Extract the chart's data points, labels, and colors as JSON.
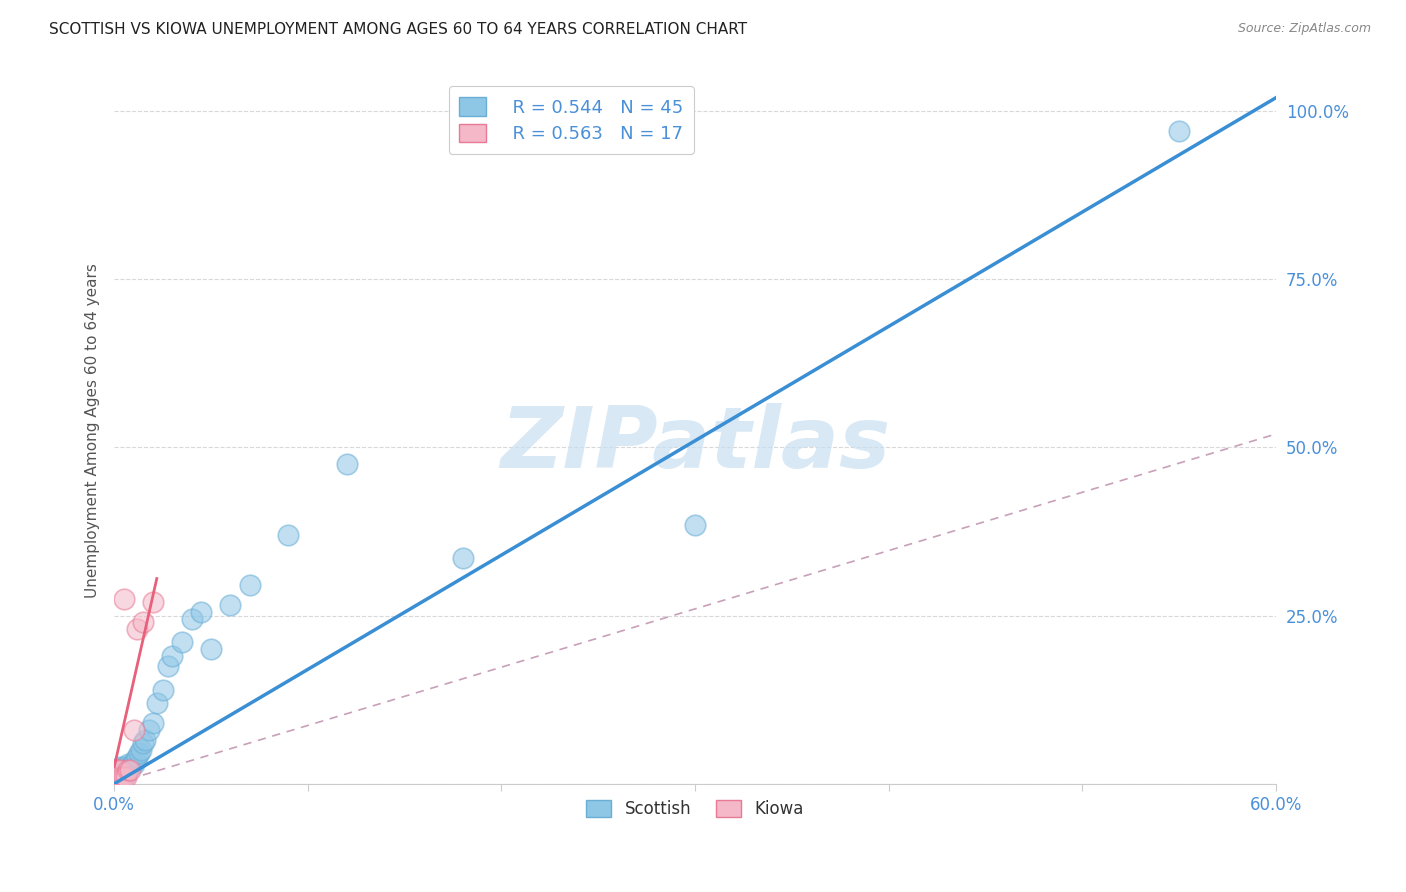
{
  "title": "SCOTTISH VS KIOWA UNEMPLOYMENT AMONG AGES 60 TO 64 YEARS CORRELATION CHART",
  "source": "Source: ZipAtlas.com",
  "ylabel": "Unemployment Among Ages 60 to 64 years",
  "xlim": [
    0.0,
    0.6
  ],
  "ylim": [
    0.0,
    1.05
  ],
  "scottish_color": "#8ec6e6",
  "scottish_edge_color": "#6aaed6",
  "kiowa_color": "#f4b8c8",
  "kiowa_edge_color": "#e87a96",
  "scottish_line_color": "#3a8fd4",
  "kiowa_line_color": "#e8607a",
  "dashed_line_color": "#c8a0b8",
  "watermark_color": "#c8dff0",
  "watermark_text": "ZIPatlas",
  "legend_R_scottish": "R = 0.544",
  "legend_N_scottish": "N = 45",
  "legend_R_kiowa": "R = 0.563",
  "legend_N_kiowa": "N = 17",
  "scottish_x": [
    0.001,
    0.001,
    0.001,
    0.002,
    0.002,
    0.002,
    0.002,
    0.003,
    0.003,
    0.003,
    0.003,
    0.004,
    0.004,
    0.005,
    0.005,
    0.006,
    0.006,
    0.007,
    0.007,
    0.008,
    0.009,
    0.01,
    0.011,
    0.012,
    0.013,
    0.014,
    0.015,
    0.016,
    0.018,
    0.02,
    0.022,
    0.025,
    0.028,
    0.03,
    0.035,
    0.04,
    0.045,
    0.05,
    0.06,
    0.07,
    0.09,
    0.12,
    0.18,
    0.3,
    0.55
  ],
  "scottish_y": [
    0.005,
    0.01,
    0.015,
    0.005,
    0.01,
    0.015,
    0.02,
    0.01,
    0.015,
    0.02,
    0.025,
    0.015,
    0.02,
    0.015,
    0.025,
    0.015,
    0.025,
    0.02,
    0.03,
    0.025,
    0.03,
    0.03,
    0.035,
    0.04,
    0.045,
    0.05,
    0.06,
    0.065,
    0.08,
    0.09,
    0.12,
    0.14,
    0.175,
    0.19,
    0.21,
    0.245,
    0.255,
    0.2,
    0.265,
    0.295,
    0.37,
    0.475,
    0.335,
    0.385,
    0.97
  ],
  "kiowa_x": [
    0.001,
    0.001,
    0.001,
    0.002,
    0.002,
    0.003,
    0.003,
    0.004,
    0.005,
    0.005,
    0.006,
    0.007,
    0.008,
    0.01,
    0.012,
    0.015,
    0.02
  ],
  "kiowa_y": [
    0.005,
    0.01,
    0.02,
    0.01,
    0.02,
    0.01,
    0.02,
    0.01,
    0.01,
    0.275,
    0.01,
    0.02,
    0.02,
    0.08,
    0.23,
    0.24,
    0.27
  ],
  "scottish_line_x0": 0.0,
  "scottish_line_y0": 0.0,
  "scottish_line_x1": 0.6,
  "scottish_line_y1": 1.02,
  "kiowa_line_x0": 0.0,
  "kiowa_line_y0": 0.025,
  "kiowa_line_x1": 0.022,
  "kiowa_line_y1": 0.305,
  "dashed_line_x0": 0.0,
  "dashed_line_y0": 0.0,
  "dashed_line_x1": 0.6,
  "dashed_line_y1": 0.52,
  "background_color": "#ffffff",
  "grid_color": "#d8d8d8",
  "title_color": "#222222",
  "axis_label_color": "#555555",
  "tick_label_color": "#4a90d9",
  "bottom_legend_label_color": "#333333"
}
